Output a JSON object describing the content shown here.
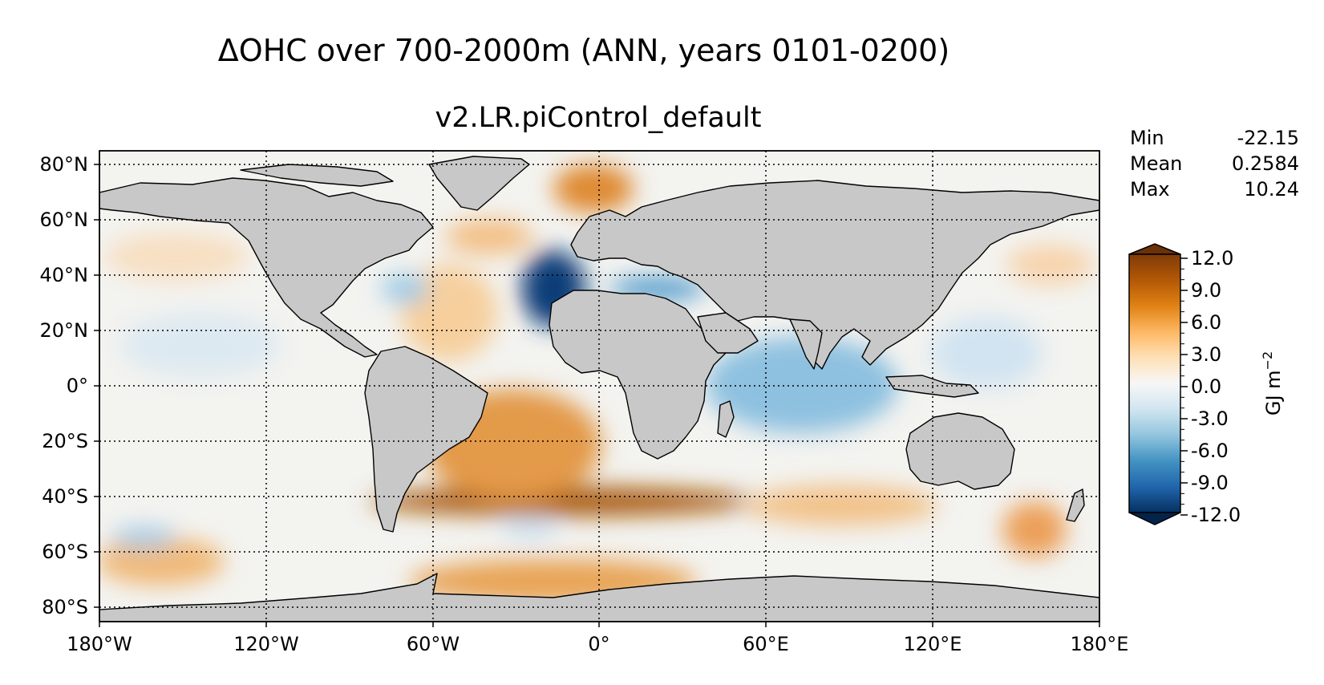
{
  "chart_data": {
    "type": "heatmap",
    "title": "ΔOHC over 700-2000m (ANN, years 0101-0200)",
    "subtitle": "v2.LR.piControl_default",
    "projection": "equirectangular",
    "x_ticks": [
      "180°W",
      "120°W",
      "60°W",
      "0°",
      "60°E",
      "120°E",
      "180°E"
    ],
    "y_ticks": [
      "80°N",
      "60°N",
      "40°N",
      "20°N",
      "0°",
      "20°S",
      "40°S",
      "60°S",
      "80°S"
    ],
    "lon_range": [
      -180,
      180
    ],
    "lat_range": [
      -85,
      85
    ],
    "grid": true,
    "stats": [
      {
        "label": "Min",
        "value": "-22.15"
      },
      {
        "label": "Mean",
        "value": "0.2584"
      },
      {
        "label": "Max",
        "value": "10.24"
      }
    ],
    "colorbar": {
      "label": "GJ m",
      "label_exponent": "−2",
      "range": [
        -12,
        12
      ],
      "ticks": [
        "12.0",
        "9.0",
        "6.0",
        "3.0",
        "0.0",
        "-3.0",
        "-6.0",
        "-9.0",
        "-12.0"
      ],
      "extend": "both",
      "colors_low_to_high": [
        "#053061",
        "#2166ac",
        "#4393c3",
        "#92c5de",
        "#d1e5f0",
        "#f7f7f7",
        "#fee0b6",
        "#fdb863",
        "#e08214",
        "#b35806",
        "#7f3b08"
      ]
    },
    "land_color": "#c8c8c8",
    "features": [
      {
        "region": "Mediterranean / off Iberia",
        "value": -12
      },
      {
        "region": "South Atlantic ~40°S",
        "value": 10
      },
      {
        "region": "Norwegian Sea",
        "value": 7
      },
      {
        "region": "Indian Ocean",
        "value": -4
      },
      {
        "region": "Southern Ocean ~70°S",
        "value": 5
      }
    ]
  }
}
